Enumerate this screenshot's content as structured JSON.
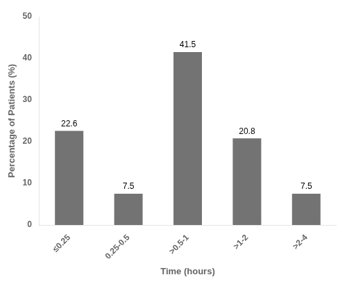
{
  "chart_data": {
    "type": "bar",
    "xlabel": "Time (hours)",
    "ylabel": "Percentage of Patients (%)",
    "categories": [
      "≤0.25",
      "0.25-0.5",
      ">0.5-1",
      ">1-2",
      ">2-4"
    ],
    "values": [
      22.6,
      7.5,
      41.5,
      20.8,
      7.5
    ],
    "color": "#737373",
    "ylim": [
      0,
      50
    ],
    "yticks": [
      0,
      10,
      20,
      30,
      40,
      50
    ],
    "grid": false,
    "data_labels": true
  }
}
